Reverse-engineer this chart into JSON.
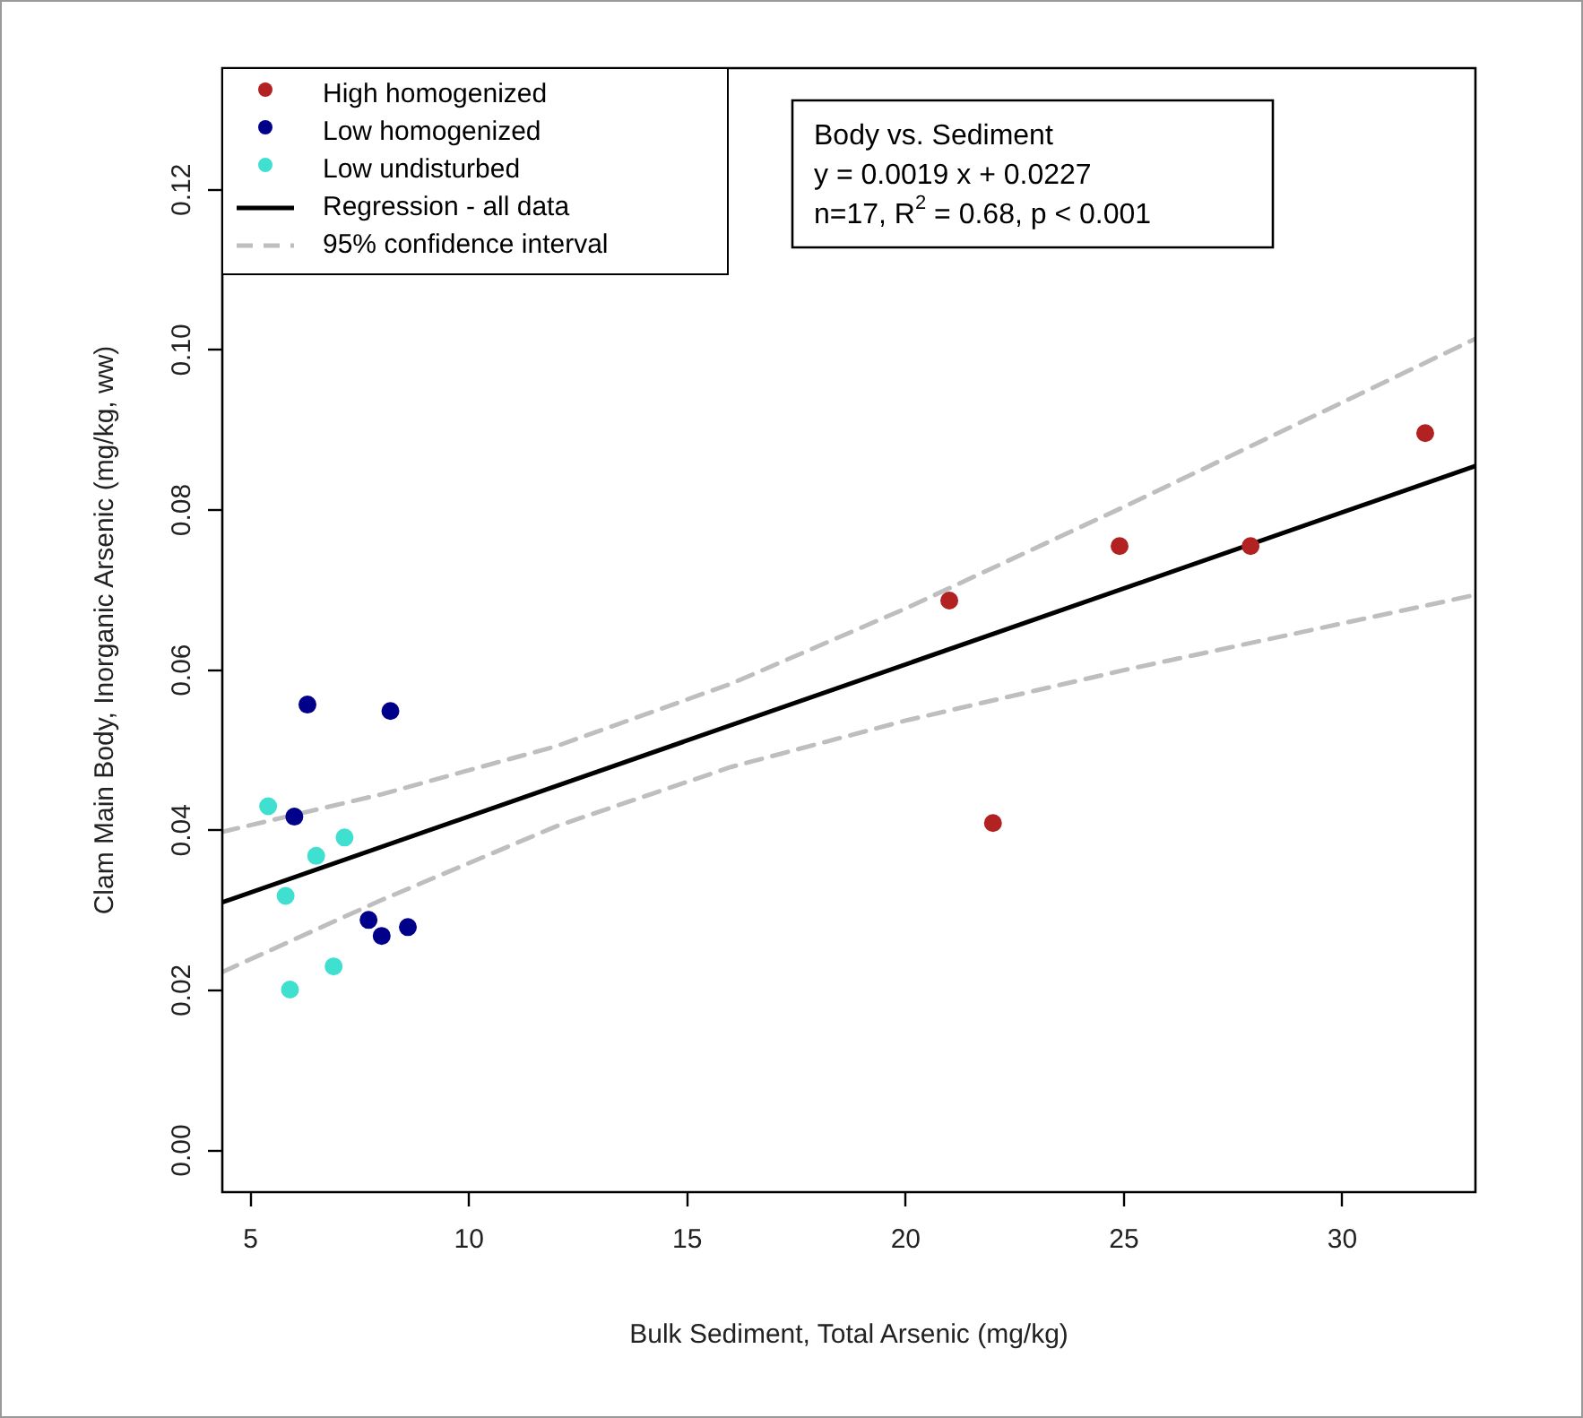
{
  "chart_data": {
    "type": "scatter",
    "xlabel": "Bulk Sediment, Total Arsenic (mg/kg)",
    "ylabel": "Clam Main Body, Inorganic Arsenic (mg/kg, ww)",
    "xlim": [
      4.35,
      33.05
    ],
    "xticks": [
      5,
      10,
      15,
      20,
      25,
      30
    ],
    "ylim": [
      -0.0052,
      0.1352
    ],
    "yticks": [
      {
        "value": 0,
        "label": "0.00"
      },
      {
        "value": 0.02,
        "label": "0.02"
      },
      {
        "value": 0.04,
        "label": "0.04"
      },
      {
        "value": 0.06,
        "label": "0.06"
      },
      {
        "value": 0.08,
        "label": "0.08"
      },
      {
        "value": 0.1,
        "label": "0.10"
      },
      {
        "value": 0.12,
        "label": "0.12"
      }
    ],
    "grid": false,
    "legend": "top left",
    "marker": "circle",
    "series": [
      {
        "name": "High homogenized",
        "color": "#b22222",
        "x": [
          31.9,
          24.9,
          27.9,
          21.0,
          22.0
        ],
        "values": [
          0.0896,
          0.0755,
          0.0755,
          0.0687,
          0.0409
        ]
      },
      {
        "name": "Low homogenized",
        "color": "#00008b",
        "x": [
          6.3,
          8.2,
          6.0,
          7.7,
          8.0,
          8.6
        ],
        "values": [
          0.0557,
          0.0549,
          0.0417,
          0.0288,
          0.0268,
          0.0279
        ]
      },
      {
        "name": "Low undisturbed",
        "color": "#40e0d0",
        "x": [
          5.4,
          7.15,
          6.5,
          5.8,
          6.9,
          5.9
        ],
        "values": [
          0.043,
          0.0391,
          0.0368,
          0.0318,
          0.023,
          0.0201
        ]
      },
      {
        "name": "Regression - all data",
        "type": "line",
        "marker": "none",
        "line_style": "solid",
        "color": "#000000",
        "x": [
          4.35,
          33.05
        ],
        "values": [
          0.031,
          0.0855
        ]
      },
      {
        "name": "95% confidence interval",
        "type": "line",
        "marker": "none",
        "line_style": "dashed",
        "color": "#bebebe",
        "x": [
          4.35,
          8,
          12,
          16,
          20,
          25,
          33.05
        ],
        "values": [
          0.0398,
          0.0445,
          0.0505,
          0.0583,
          0.0677,
          0.0804,
          0.1014
        ]
      },
      {
        "type": "line",
        "marker": "none",
        "line_style": "dashed",
        "color": "#bebebe",
        "x": [
          4.35,
          8,
          12,
          16,
          20,
          25,
          33.05
        ],
        "values": [
          0.0223,
          0.0313,
          0.0405,
          0.0479,
          0.0537,
          0.06,
          0.0694
        ]
      }
    ],
    "annotations": [
      "Body vs. Sediment",
      "y = 0.0019 x + 0.0227",
      "n=17, R$^{2}$ = 0.68, p < 0.001"
    ]
  }
}
